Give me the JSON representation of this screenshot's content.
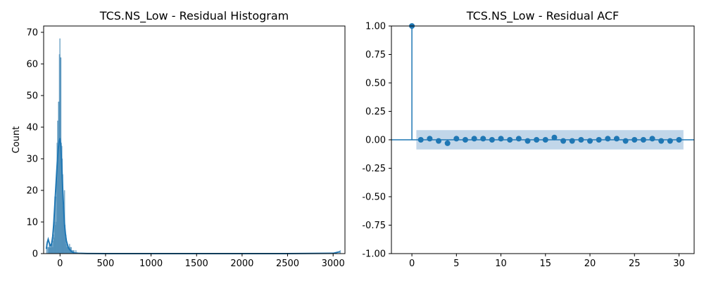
{
  "chart_data": [
    {
      "type": "bar",
      "subtype": "histogram-with-kde",
      "title": "TCS.NS_Low - Residual Histogram",
      "xlabel": "",
      "ylabel": "Count",
      "xlim": [
        -180,
        3130
      ],
      "ylim": [
        0,
        72
      ],
      "xticks": [
        0,
        500,
        1000,
        1500,
        2000,
        2500,
        3000
      ],
      "yticks": [
        0,
        10,
        20,
        30,
        40,
        50,
        60,
        70
      ],
      "bar_color": "#4c8db8",
      "kde_color": "#1f77b4",
      "bins": [
        {
          "x": -150,
          "count": 3
        },
        {
          "x": -140,
          "count": 2
        },
        {
          "x": -135,
          "count": 0
        },
        {
          "x": -130,
          "count": 2
        },
        {
          "x": -125,
          "count": 2
        },
        {
          "x": -120,
          "count": 3
        },
        {
          "x": -115,
          "count": 2
        },
        {
          "x": -110,
          "count": 2
        },
        {
          "x": -105,
          "count": 3
        },
        {
          "x": -100,
          "count": 2
        },
        {
          "x": -95,
          "count": 4
        },
        {
          "x": -90,
          "count": 3
        },
        {
          "x": -85,
          "count": 2
        },
        {
          "x": -80,
          "count": 4
        },
        {
          "x": -75,
          "count": 6
        },
        {
          "x": -70,
          "count": 5
        },
        {
          "x": -65,
          "count": 10
        },
        {
          "x": -60,
          "count": 18
        },
        {
          "x": -55,
          "count": 9
        },
        {
          "x": -50,
          "count": 18
        },
        {
          "x": -45,
          "count": 10
        },
        {
          "x": -40,
          "count": 23
        },
        {
          "x": -35,
          "count": 35
        },
        {
          "x": -30,
          "count": 42
        },
        {
          "x": -25,
          "count": 34
        },
        {
          "x": -20,
          "count": 48
        },
        {
          "x": -15,
          "count": 48
        },
        {
          "x": -10,
          "count": 63
        },
        {
          "x": -5,
          "count": 68
        },
        {
          "x": 0,
          "count": 62
        },
        {
          "x": 5,
          "count": 62
        },
        {
          "x": 10,
          "count": 35
        },
        {
          "x": 15,
          "count": 34
        },
        {
          "x": 20,
          "count": 30
        },
        {
          "x": 25,
          "count": 25
        },
        {
          "x": 30,
          "count": 15
        },
        {
          "x": 35,
          "count": 15
        },
        {
          "x": 40,
          "count": 12
        },
        {
          "x": 45,
          "count": 20
        },
        {
          "x": 50,
          "count": 9
        },
        {
          "x": 55,
          "count": 5
        },
        {
          "x": 60,
          "count": 6
        },
        {
          "x": 65,
          "count": 3
        },
        {
          "x": 70,
          "count": 2
        },
        {
          "x": 75,
          "count": 3
        },
        {
          "x": 80,
          "count": 2
        },
        {
          "x": 85,
          "count": 2
        },
        {
          "x": 90,
          "count": 2
        },
        {
          "x": 95,
          "count": 2
        },
        {
          "x": 100,
          "count": 3
        },
        {
          "x": 105,
          "count": 1
        },
        {
          "x": 110,
          "count": 2
        },
        {
          "x": 115,
          "count": 1
        },
        {
          "x": 120,
          "count": 2
        },
        {
          "x": 125,
          "count": 1
        },
        {
          "x": 130,
          "count": 1
        },
        {
          "x": 140,
          "count": 1
        },
        {
          "x": 150,
          "count": 1
        },
        {
          "x": 170,
          "count": 1
        },
        {
          "x": 3075,
          "count": 1
        }
      ],
      "bin_width": 5,
      "kde": {
        "x": [
          -150,
          -140,
          -130,
          -120,
          -110,
          -100,
          -90,
          -80,
          -70,
          -60,
          -50,
          -40,
          -30,
          -20,
          -10,
          0,
          10,
          20,
          30,
          40,
          50,
          60,
          70,
          80,
          90,
          100,
          120,
          140,
          160,
          200,
          300,
          500,
          1000,
          1500,
          2000,
          2500,
          3000,
          3075
        ],
        "y": [
          1.5,
          3.5,
          4.5,
          3.5,
          2.5,
          2.5,
          3.5,
          5.5,
          9,
          14,
          19,
          24,
          29,
          33,
          35.5,
          36.5,
          33.5,
          27,
          20,
          14,
          9,
          6,
          4,
          3,
          2,
          1.5,
          0.8,
          0.4,
          0.2,
          0.1,
          0.02,
          0,
          0,
          0,
          0,
          0,
          0.1,
          0.6
        ]
      }
    },
    {
      "type": "scatter",
      "subtype": "acf-stem",
      "title": "TCS.NS_Low - Residual ACF",
      "xlabel": "",
      "ylabel": "",
      "xlim": [
        -2.3,
        31.7
      ],
      "ylim": [
        -1.0,
        1.0
      ],
      "xticks": [
        0,
        5,
        10,
        15,
        20,
        25,
        30
      ],
      "yticks": [
        "-1.00",
        "-0.75",
        "-0.50",
        "-0.25",
        "0.00",
        "0.25",
        "0.50",
        "0.75",
        "1.00"
      ],
      "marker_color": "#1f77b4",
      "confidence_band": {
        "lag_start": 0.5,
        "lag_end": 30.5,
        "lower": -0.085,
        "upper": 0.085,
        "color": "#a6c4e0"
      },
      "lags": [
        0,
        1,
        2,
        3,
        4,
        5,
        6,
        7,
        8,
        9,
        10,
        11,
        12,
        13,
        14,
        15,
        16,
        17,
        18,
        19,
        20,
        21,
        22,
        23,
        24,
        25,
        26,
        27,
        28,
        29,
        30
      ],
      "acf": [
        1.0,
        0.0,
        0.01,
        -0.01,
        -0.03,
        0.01,
        0.0,
        0.01,
        0.01,
        0.0,
        0.01,
        0.0,
        0.01,
        -0.01,
        0.0,
        0.0,
        0.02,
        -0.01,
        -0.01,
        0.0,
        -0.01,
        0.0,
        0.01,
        0.01,
        -0.01,
        0.0,
        0.0,
        0.01,
        -0.01,
        -0.01,
        0.0
      ]
    }
  ]
}
